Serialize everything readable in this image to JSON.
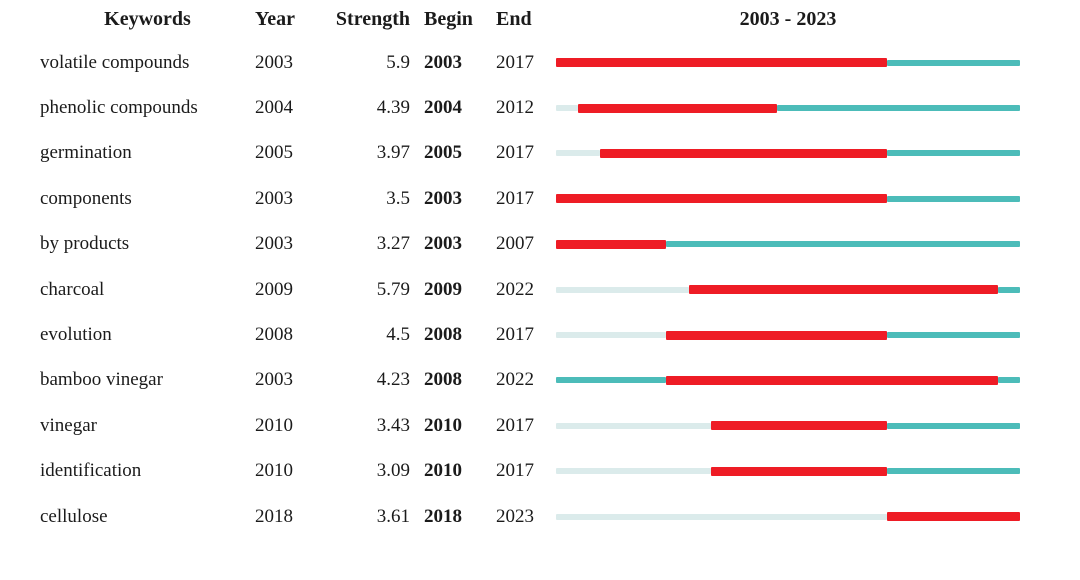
{
  "table": {
    "headers": {
      "keywords": "Keywords",
      "year": "Year",
      "strength": "Strength",
      "begin": "Begin",
      "end": "End",
      "period": "2003 - 2023"
    }
  },
  "colors": {
    "burst": "#ee1c25",
    "active": "#4cbcb9",
    "inactive": "#dbebeb"
  },
  "chart_data": {
    "type": "bar",
    "subtype": "citation-burst-timeline",
    "title": "2003 - 2023",
    "columns": [
      "Keywords",
      "Year",
      "Strength",
      "Begin",
      "End"
    ],
    "timeline": {
      "start": 2003,
      "end": 2023
    },
    "legend": {
      "burst_color_meaning": "burst period (Begin-End)",
      "active_color_meaning": "years after first appearance, outside burst",
      "inactive_color_meaning": "years before first appearance"
    },
    "rows": [
      {
        "keyword": "volatile compounds",
        "year": 2003,
        "strength": "5.9",
        "begin": 2003,
        "end": 2017
      },
      {
        "keyword": "phenolic compounds",
        "year": 2004,
        "strength": "4.39",
        "begin": 2004,
        "end": 2012
      },
      {
        "keyword": "germination",
        "year": 2005,
        "strength": "3.97",
        "begin": 2005,
        "end": 2017
      },
      {
        "keyword": "components",
        "year": 2003,
        "strength": "3.5",
        "begin": 2003,
        "end": 2017
      },
      {
        "keyword": "by products",
        "year": 2003,
        "strength": "3.27",
        "begin": 2003,
        "end": 2007
      },
      {
        "keyword": "charcoal",
        "year": 2009,
        "strength": "5.79",
        "begin": 2009,
        "end": 2022
      },
      {
        "keyword": "evolution",
        "year": 2008,
        "strength": "4.5",
        "begin": 2008,
        "end": 2017
      },
      {
        "keyword": "bamboo vinegar",
        "year": 2003,
        "strength": "4.23",
        "begin": 2008,
        "end": 2022
      },
      {
        "keyword": "vinegar",
        "year": 2010,
        "strength": "3.43",
        "begin": 2010,
        "end": 2017
      },
      {
        "keyword": "identification",
        "year": 2010,
        "strength": "3.09",
        "begin": 2010,
        "end": 2017
      },
      {
        "keyword": "cellulose",
        "year": 2018,
        "strength": "3.61",
        "begin": 2018,
        "end": 2023
      }
    ]
  }
}
